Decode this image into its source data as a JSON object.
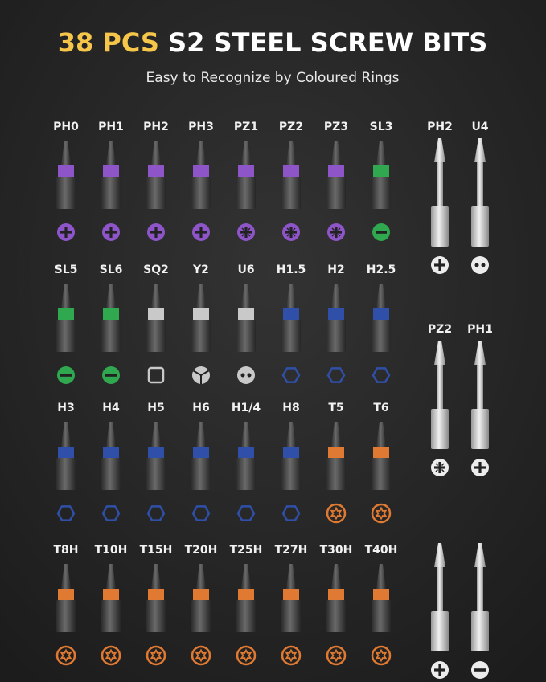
{
  "header": {
    "title_highlight": "38 PCS",
    "title_rest": "S2 STEEL SCREW BITS",
    "subtitle": "Easy to Recognize by Coloured Rings"
  },
  "bits": [
    {
      "label": "PH0",
      "ring": "#8e55c9",
      "icon": "plus"
    },
    {
      "label": "PH1",
      "ring": "#8e55c9",
      "icon": "plus"
    },
    {
      "label": "PH2",
      "ring": "#8e55c9",
      "icon": "plus"
    },
    {
      "label": "PH3",
      "ring": "#8e55c9",
      "icon": "plus"
    },
    {
      "label": "PZ1",
      "ring": "#8e55c9",
      "icon": "pozi"
    },
    {
      "label": "PZ2",
      "ring": "#8e55c9",
      "icon": "pozi"
    },
    {
      "label": "PZ3",
      "ring": "#8e55c9",
      "icon": "pozi"
    },
    {
      "label": "SL3",
      "ring": "#2fa84f",
      "icon": "minus"
    },
    {
      "label": "SL5",
      "ring": "#2fa84f",
      "icon": "minus"
    },
    {
      "label": "SL6",
      "ring": "#2fa84f",
      "icon": "minus"
    },
    {
      "label": "SQ2",
      "ring": "#c9c9c9",
      "icon": "square"
    },
    {
      "label": "Y2",
      "ring": "#c9c9c9",
      "icon": "tri"
    },
    {
      "label": "U6",
      "ring": "#c9c9c9",
      "icon": "dots"
    },
    {
      "label": "H1.5",
      "ring": "#2f4fa8",
      "icon": "hex"
    },
    {
      "label": "H2",
      "ring": "#2f4fa8",
      "icon": "hex"
    },
    {
      "label": "H2.5",
      "ring": "#2f4fa8",
      "icon": "hex"
    },
    {
      "label": "H3",
      "ring": "#2f4fa8",
      "icon": "hex"
    },
    {
      "label": "H4",
      "ring": "#2f4fa8",
      "icon": "hex"
    },
    {
      "label": "H5",
      "ring": "#2f4fa8",
      "icon": "hex"
    },
    {
      "label": "H6",
      "ring": "#2f4fa8",
      "icon": "hex"
    },
    {
      "label": "H1/4",
      "ring": "#2f4fa8",
      "icon": "hex"
    },
    {
      "label": "H8",
      "ring": "#2f4fa8",
      "icon": "hex"
    },
    {
      "label": "T5",
      "ring": "#e07a32",
      "icon": "star"
    },
    {
      "label": "T6",
      "ring": "#e07a32",
      "icon": "star"
    },
    {
      "label": "T8H",
      "ring": "#e07a32",
      "icon": "star"
    },
    {
      "label": "T10H",
      "ring": "#e07a32",
      "icon": "star"
    },
    {
      "label": "T15H",
      "ring": "#e07a32",
      "icon": "star"
    },
    {
      "label": "T20H",
      "ring": "#e07a32",
      "icon": "star"
    },
    {
      "label": "T25H",
      "ring": "#e07a32",
      "icon": "star"
    },
    {
      "label": "T27H",
      "ring": "#e07a32",
      "icon": "star"
    },
    {
      "label": "T30H",
      "ring": "#e07a32",
      "icon": "star"
    },
    {
      "label": "T40H",
      "ring": "#e07a32",
      "icon": "star"
    }
  ],
  "long_bits": [
    {
      "label": "PH2",
      "icon": "plus"
    },
    {
      "label": "U4",
      "icon": "dots"
    },
    {
      "label": "PZ2",
      "icon": "pozi"
    },
    {
      "label": "PH1",
      "icon": "plus"
    },
    {
      "icon": "plus"
    },
    {
      "icon": "minus"
    }
  ]
}
